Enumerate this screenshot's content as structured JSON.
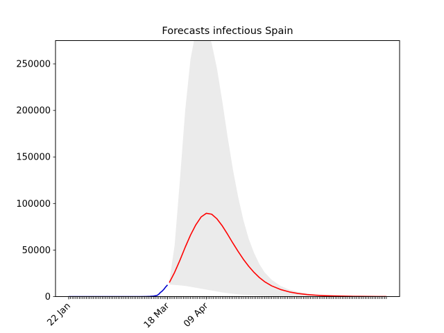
{
  "chart_data": {
    "type": "line",
    "title": "Forecasts infectious Spain",
    "xlabel": "",
    "ylabel": "",
    "grid": false,
    "x_ticks": [
      {
        "label": "22 Jan",
        "day": 0
      },
      {
        "label": "18 Mar",
        "day": 56
      },
      {
        "label": "09 Apr",
        "day": 78
      }
    ],
    "y_ticks": [
      0,
      50000,
      100000,
      150000,
      200000,
      250000
    ],
    "xlim": [
      -7.5,
      187.5
    ],
    "ylim": [
      0,
      275000
    ],
    "day_range": [
      0,
      180
    ],
    "series": [
      {
        "role": "observed",
        "color": "#0000cc",
        "x": [
          0,
          10,
          20,
          30,
          35,
          40,
          44,
          46,
          48,
          50,
          51,
          52,
          53,
          54,
          55,
          56
        ],
        "y": [
          0,
          0,
          0,
          0,
          0,
          0,
          100,
          200,
          500,
          1200,
          2500,
          4500,
          6000,
          8000,
          10500,
          12500
        ]
      },
      {
        "role": "forecast",
        "color": "#ff0000",
        "x": [
          57,
          60,
          63,
          66,
          69,
          72,
          75,
          78,
          81,
          84,
          87,
          90,
          93,
          96,
          99,
          102,
          105,
          108,
          111,
          115,
          120,
          125,
          130,
          135,
          140,
          145,
          150,
          155,
          160,
          165,
          170,
          175,
          180
        ],
        "y": [
          15000,
          26000,
          39000,
          53000,
          66000,
          77000,
          85500,
          89500,
          88500,
          83500,
          76000,
          67000,
          57500,
          48500,
          40000,
          32500,
          26000,
          20500,
          16000,
          11500,
          7600,
          5000,
          3300,
          2200,
          1500,
          1000,
          700,
          500,
          300,
          200,
          150,
          100,
          80
        ]
      }
    ],
    "band": {
      "color": "#ebebeb",
      "x": [
        57,
        60,
        63,
        66,
        69,
        72,
        75,
        78,
        81,
        84,
        87,
        90,
        93,
        96,
        99,
        102,
        105,
        108,
        111,
        115,
        120,
        125,
        130,
        135,
        140,
        145,
        150,
        155,
        160,
        165,
        170,
        175,
        180
      ],
      "lower": [
        13000,
        12500,
        12000,
        11500,
        10500,
        9500,
        8500,
        7500,
        6500,
        5500,
        4500,
        3700,
        3000,
        2400,
        1900,
        1500,
        1200,
        900,
        700,
        500,
        350,
        250,
        180,
        120,
        80,
        60,
        40,
        30,
        20,
        15,
        10,
        8,
        5
      ],
      "upper": [
        16000,
        55000,
        125000,
        200000,
        255000,
        285000,
        295000,
        290000,
        272000,
        245000,
        210000,
        172000,
        137000,
        107000,
        82000,
        62000,
        47000,
        35000,
        26000,
        18000,
        11500,
        7500,
        5000,
        3300,
        2200,
        1500,
        1000,
        700,
        500,
        350,
        250,
        170,
        120
      ]
    }
  }
}
